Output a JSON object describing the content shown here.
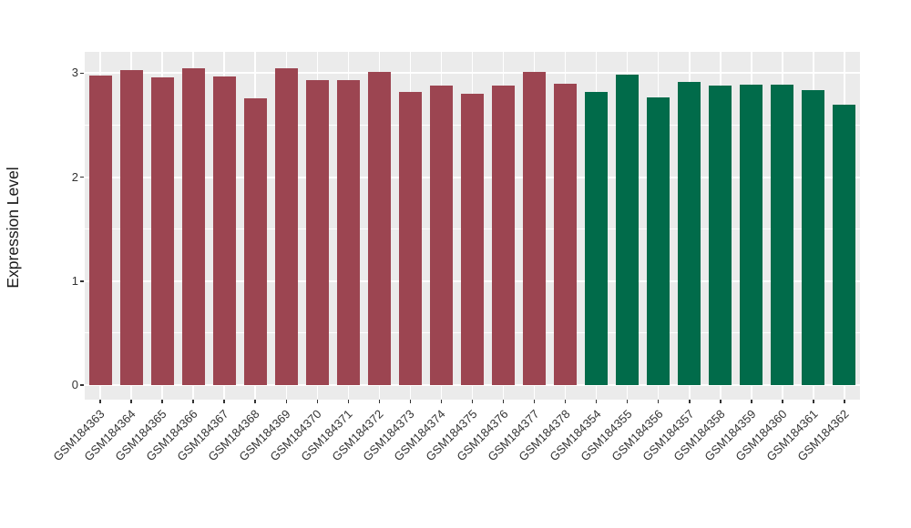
{
  "figure": {
    "background_color": "#FFFFFF",
    "panel_background_color": "#EBEBEB",
    "grid_color": "#FFFFFF",
    "tick_text_color": "#333333",
    "axis_title_color": "#1A1A1A"
  },
  "chart_data": {
    "type": "bar",
    "title": "",
    "xlabel": "",
    "ylabel": "Expression Level",
    "ylim": [
      0,
      3.2
    ],
    "yticks": [
      0,
      1,
      2,
      3
    ],
    "y_minor_gridlines": [
      0.5,
      1.5,
      2.5
    ],
    "grid": "on",
    "legend_position": "none",
    "group_colors": {
      "maroon": "#9C4551",
      "green": "#016B4A"
    },
    "categories": [
      "GSM184363",
      "GSM184364",
      "GSM184365",
      "GSM184366",
      "GSM184367",
      "GSM184368",
      "GSM184369",
      "GSM184370",
      "GSM184371",
      "GSM184372",
      "GSM184373",
      "GSM184374",
      "GSM184375",
      "GSM184376",
      "GSM184377",
      "GSM184378",
      "GSM184354",
      "GSM184355",
      "GSM184356",
      "GSM184357",
      "GSM184358",
      "GSM184359",
      "GSM184360",
      "GSM184361",
      "GSM184362"
    ],
    "values": [
      2.98,
      3.03,
      2.96,
      3.05,
      2.97,
      2.76,
      3.05,
      2.93,
      2.93,
      3.01,
      2.82,
      2.88,
      2.8,
      2.88,
      3.01,
      2.9,
      2.82,
      2.99,
      2.77,
      2.92,
      2.88,
      2.89,
      2.89,
      2.84,
      2.7
    ],
    "bar_groups": [
      "maroon",
      "maroon",
      "maroon",
      "maroon",
      "maroon",
      "maroon",
      "maroon",
      "maroon",
      "maroon",
      "maroon",
      "maroon",
      "maroon",
      "maroon",
      "maroon",
      "maroon",
      "maroon",
      "green",
      "green",
      "green",
      "green",
      "green",
      "green",
      "green",
      "green",
      "green"
    ]
  }
}
